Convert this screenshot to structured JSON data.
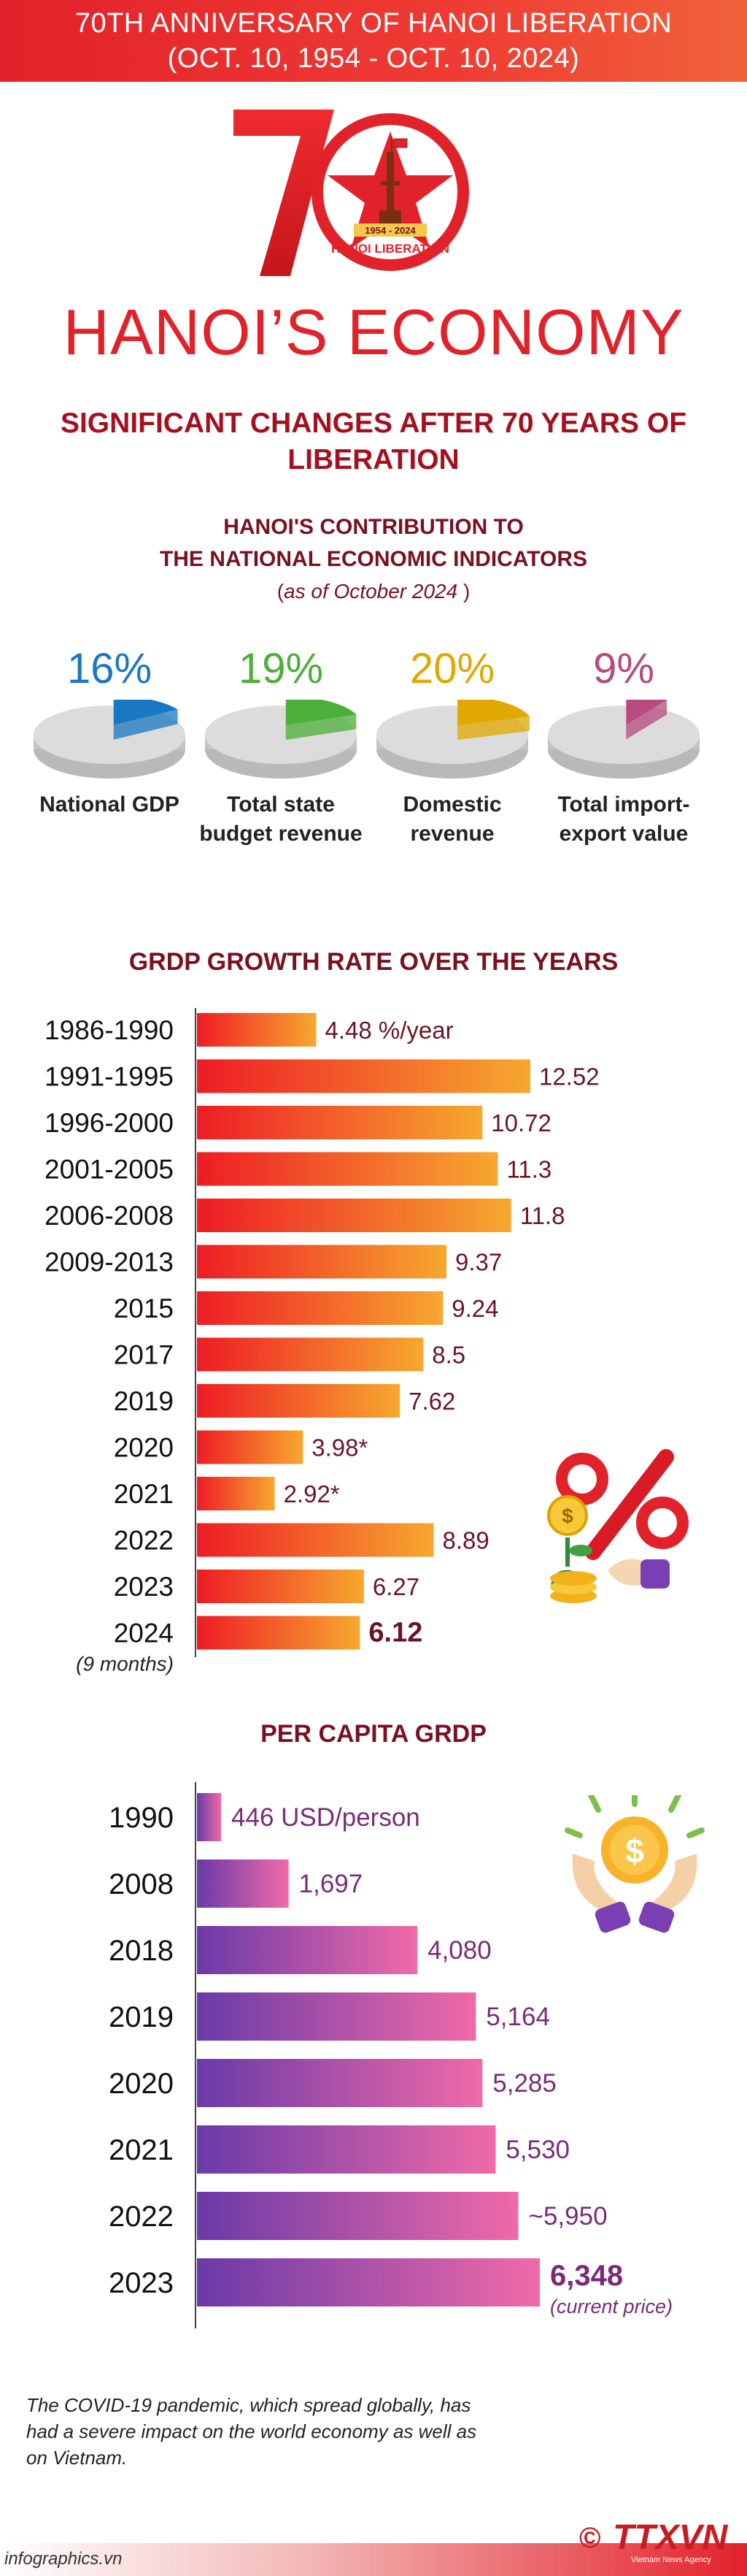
{
  "header": {
    "line1": "70TH ANNIVERSARY OF HANOI LIBERATION",
    "line2": "(OCT. 10, 1954 - OCT. 10, 2024)"
  },
  "logo": {
    "years": "1954 - 2024",
    "caption": "HANOI LIBERATION",
    "colors": {
      "red": "#e2222a",
      "gold": "#f5c84b"
    }
  },
  "title": "HANOI’S ECONOMY",
  "subtitle": "SIGNIFICANT CHANGES AFTER 70 YEARS OF LIBERATION",
  "contribution": {
    "title_line1": "HANOI'S CONTRIBUTION TO",
    "title_line2": "THE NATIONAL ECONOMIC INDICATORS",
    "note_prefix": "(",
    "note": "as of October 2024",
    "note_suffix": ")",
    "items": [
      {
        "percent": "16%",
        "value": 16,
        "label": "National GDP",
        "color": "#1a78c2"
      },
      {
        "percent": "19%",
        "value": 19,
        "label": "Total state budget revenue",
        "color": "#4caf3a"
      },
      {
        "percent": "20%",
        "value": 20,
        "label": "Domestic revenue",
        "color": "#e0a800"
      },
      {
        "percent": "9%",
        "value": 9,
        "label": "Total import-export value",
        "color": "#b84a7e"
      }
    ]
  },
  "chart_data": [
    {
      "type": "bar",
      "orientation": "horizontal",
      "title": "GRDP GROWTH RATE OVER THE YEARS",
      "categories": [
        "1986-1990",
        "1991-1995",
        "1996-2000",
        "2001-2005",
        "2006-2008",
        "2009-2013",
        "2015",
        "2017",
        "2019",
        "2020",
        "2021",
        "2022",
        "2023",
        "2024"
      ],
      "category_notes": {
        "2024": "(9 months)"
      },
      "values": [
        4.48,
        12.52,
        10.72,
        11.3,
        11.8,
        9.37,
        9.24,
        8.5,
        7.62,
        3.98,
        2.92,
        8.89,
        6.27,
        6.12
      ],
      "value_labels": [
        "4.48 %/year",
        "12.52",
        "10.72",
        "11.3",
        "11.8",
        "9.37",
        "9.24",
        "8.5",
        "7.62",
        "3.98*",
        "2.92*",
        "8.89",
        "6.27",
        "6.12"
      ],
      "highlight": "2024",
      "colors": {
        "start": "#ee1c25",
        "end": "#f7a82f",
        "label": "#6b1424"
      }
    },
    {
      "type": "bar",
      "orientation": "horizontal",
      "title": "PER CAPITA GRDP",
      "categories": [
        "1990",
        "2008",
        "2018",
        "2019",
        "2020",
        "2021",
        "2022",
        "2023"
      ],
      "values": [
        446,
        1697,
        4080,
        5164,
        5285,
        5530,
        5950,
        6348
      ],
      "value_labels": [
        "446 USD/person",
        "1,697",
        "4,080",
        "5,164",
        "5,285",
        "5,530",
        "~5,950",
        "6,348"
      ],
      "notes": {
        "2023": "(current price)"
      },
      "highlight": "2023",
      "colors": {
        "start": "#6a3aa8",
        "end": "#f06aa8",
        "label": "#7a2a78"
      }
    }
  ],
  "footnote": "The COVID-19 pandemic, which spread globally, has had a severe impact on the world economy as well as on Vietnam.",
  "footer": {
    "site": "infographics.vn",
    "copyright": "©",
    "brand": "TTXVN",
    "brand_sub": "Vietnam News Agency"
  }
}
